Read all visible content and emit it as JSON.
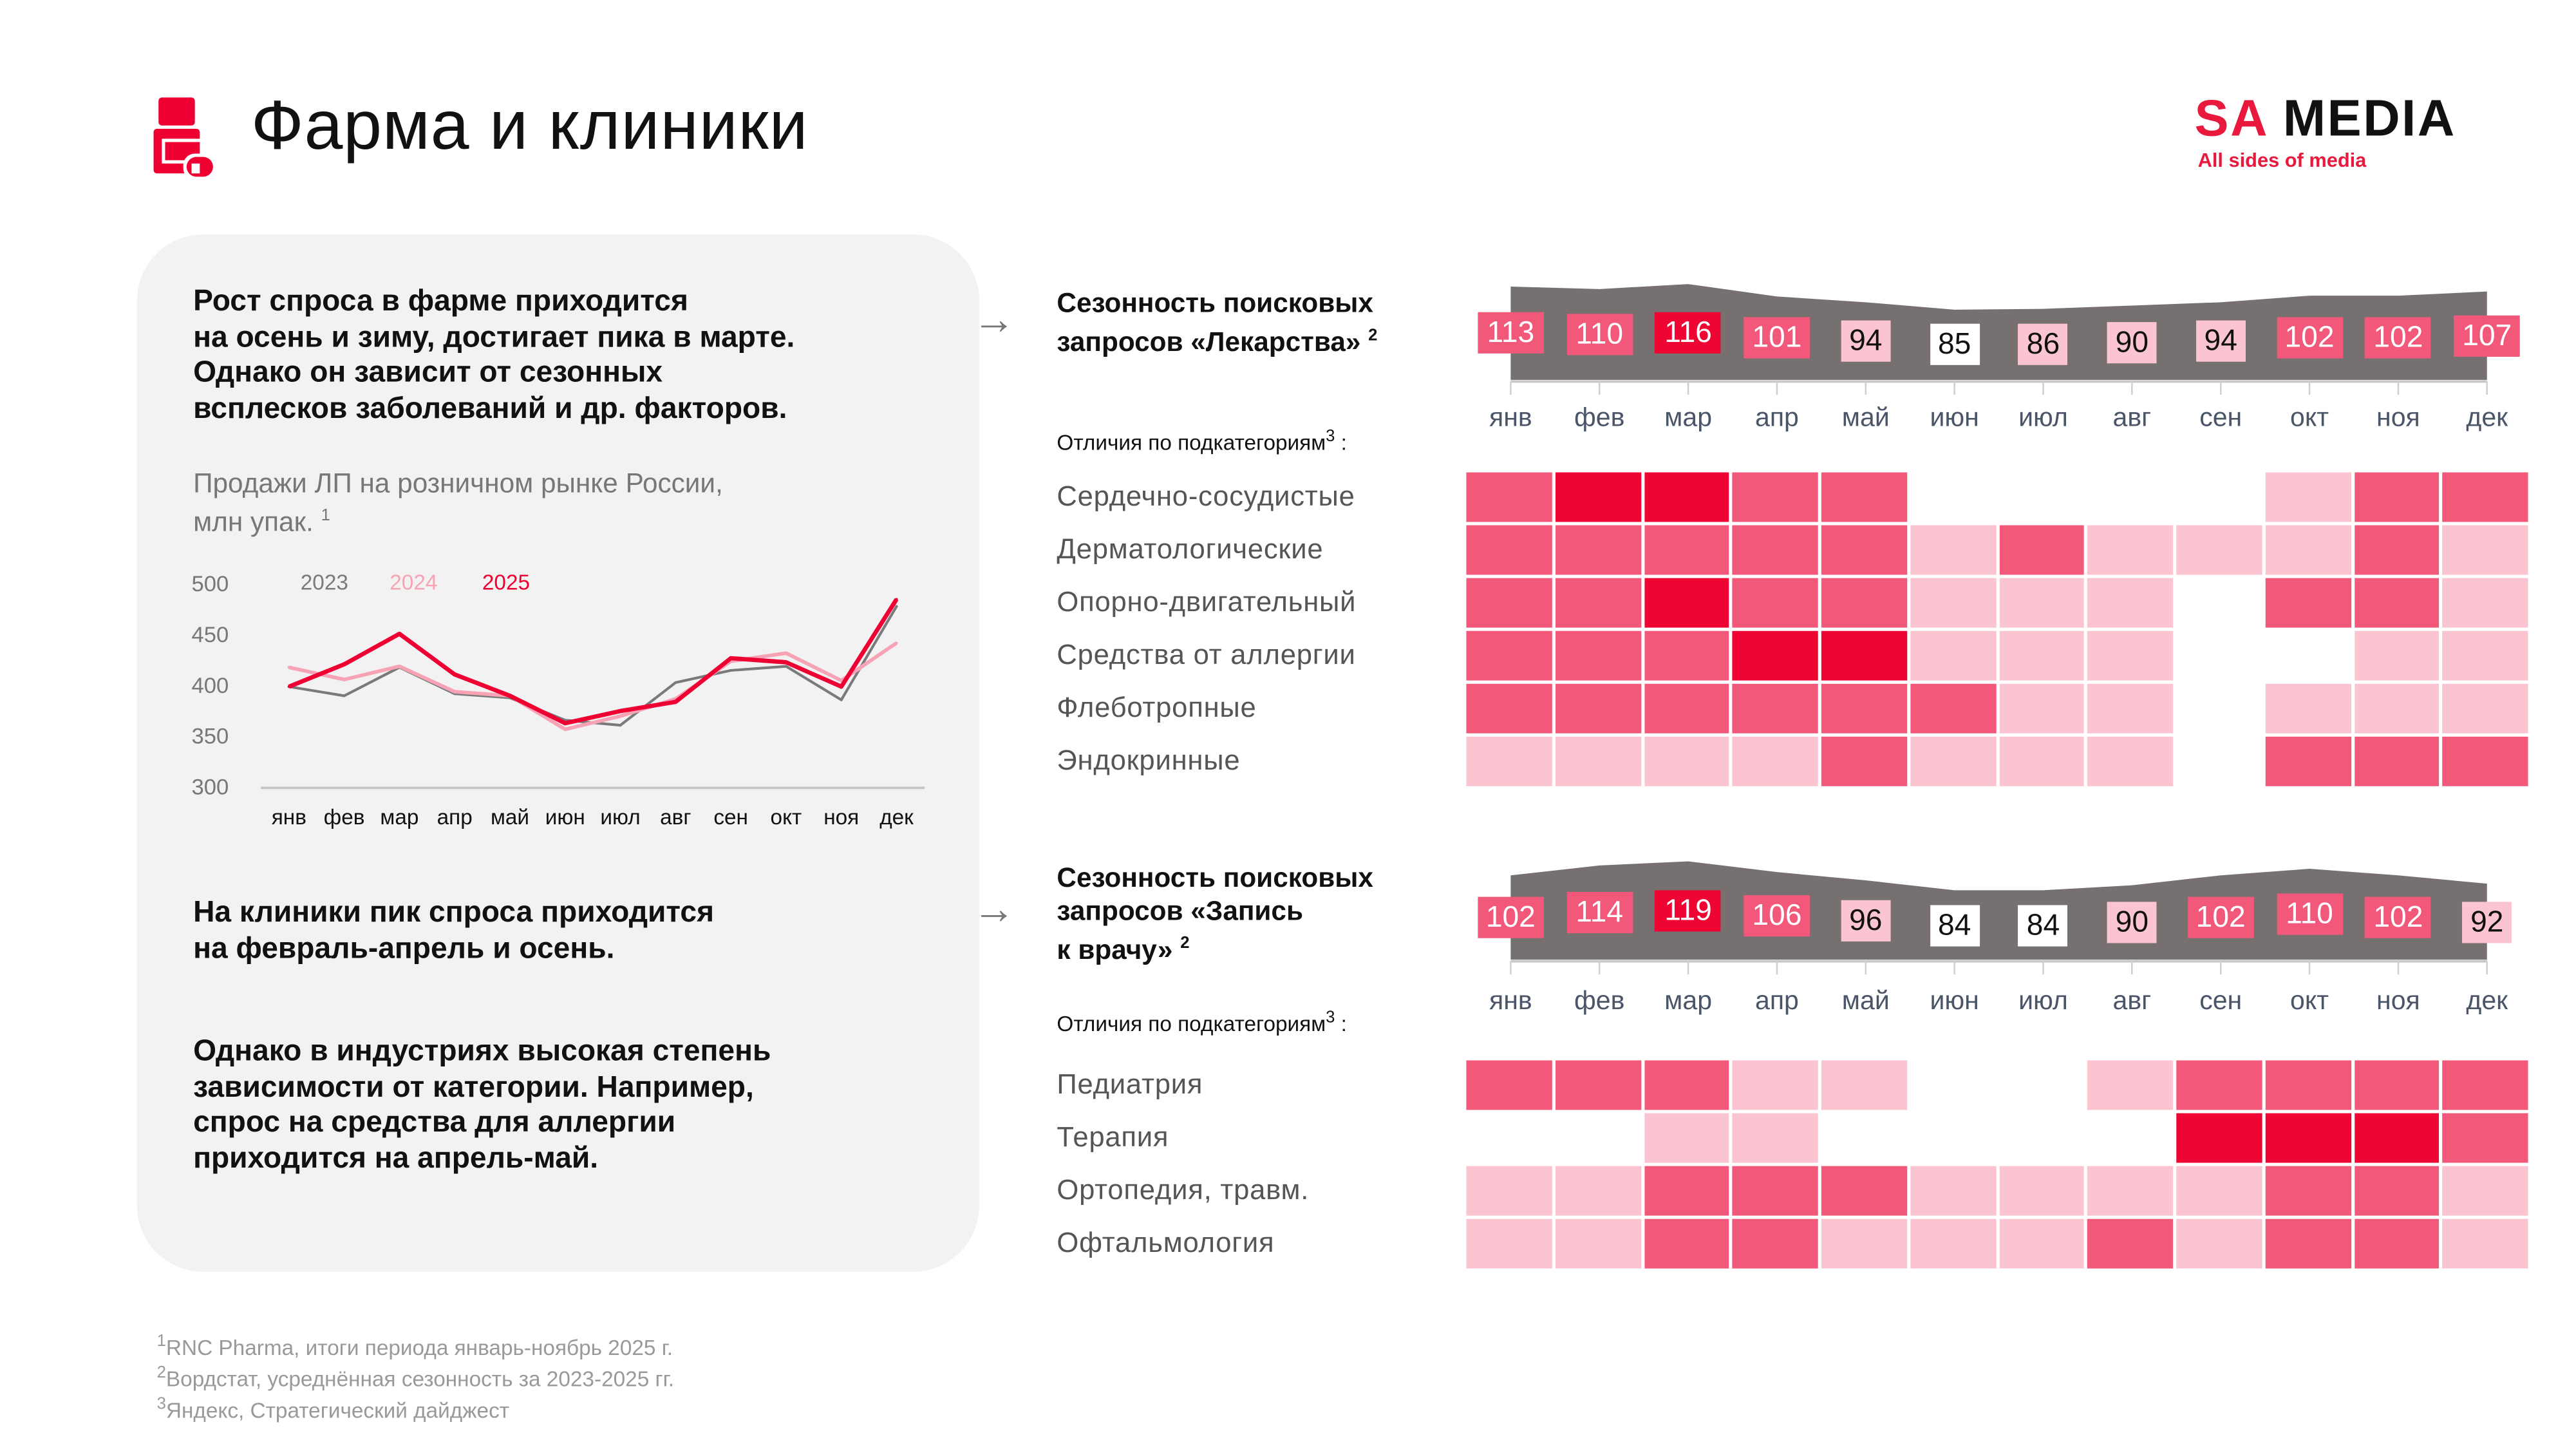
{
  "header": {
    "title": "Фарма и клиники",
    "icon": "pill-bottle-icon"
  },
  "logo": {
    "brand_sa": "SA",
    "brand_media": "MEDIA",
    "tagline": "All sides of media"
  },
  "colors": {
    "accent": "#ee0033",
    "level0": "#ffffff",
    "level1": "#fac4d1",
    "level2": "#f2587a",
    "level3": "#ee0533",
    "area": "#767170",
    "panel": "#f2f2f2"
  },
  "left_panel": {
    "paragraph1": [
      "Рост спроса в фарме приходится",
      "на осень и зиму, достигает пика в марте.",
      "Однако он зависит от сезонных",
      "всплесков заболеваний и др. факторов."
    ],
    "paragraph2": [
      "На клиники пик спроса приходится",
      "на февраль-апрель и осень."
    ],
    "paragraph3": [
      "Однако в индустриях высокая степень",
      "зависимости от категории. Например,",
      "спрос на средства для аллергии",
      "приходится на апрель-май."
    ]
  },
  "chart_data": {
    "type": "line",
    "title_lines": [
      "Продажи ЛП на розничном рынке России,",
      "млн упак."
    ],
    "title_mark": "1",
    "categories": [
      "янв",
      "фев",
      "мар",
      "апр",
      "май",
      "июн",
      "июл",
      "авг",
      "сен",
      "окт",
      "ноя",
      "дек"
    ],
    "ylim": [
      300,
      500
    ],
    "yticks": [
      "500",
      "450",
      "400",
      "350",
      "300"
    ],
    "legend_placement": "top-left",
    "grid": false,
    "series": [
      {
        "name": "2023",
        "color": "#7a7a7a",
        "values": [
          398,
          389,
          417,
          391,
          387,
          365,
          360,
          402,
          414,
          418,
          385,
          477
        ]
      },
      {
        "name": "2024",
        "color": "#f7a3b5",
        "values": [
          417,
          405,
          418,
          393,
          389,
          356,
          369,
          386,
          423,
          431,
          404,
          441
        ]
      },
      {
        "name": "2025",
        "color": "#ee0033",
        "values": [
          398,
          420,
          450,
          410,
          389,
          362,
          374,
          383,
          426,
          422,
          398,
          484
        ]
      }
    ]
  },
  "seasonality": [
    {
      "title_lines": [
        "Сезонность поисковых",
        "запросов «Лекарства»"
      ],
      "title_mark": "2",
      "months": [
        "янв",
        "фев",
        "мар",
        "апр",
        "май",
        "июн",
        "июл",
        "авг",
        "сен",
        "окт",
        "ноя",
        "дек"
      ],
      "values": [
        113,
        110,
        116,
        101,
        94,
        85,
        86,
        90,
        94,
        102,
        102,
        107
      ],
      "sub_label": "Отличия по подкатегориям",
      "sub_mark": "3",
      "rows": [
        {
          "label": "Сердечно-сосудистые",
          "levels": [
            2,
            3,
            3,
            2,
            2,
            0,
            0,
            0,
            0,
            1,
            2,
            2
          ]
        },
        {
          "label": "Дерматологические",
          "levels": [
            2,
            2,
            2,
            2,
            2,
            1,
            2,
            1,
            1,
            1,
            2,
            1
          ]
        },
        {
          "label": "Опорно-двигательный",
          "levels": [
            2,
            2,
            3,
            2,
            2,
            1,
            1,
            1,
            0,
            2,
            2,
            1
          ]
        },
        {
          "label": "Средства от аллергии",
          "levels": [
            2,
            2,
            2,
            3,
            3,
            1,
            1,
            1,
            0,
            0,
            1,
            1
          ]
        },
        {
          "label": "Флеботропные",
          "levels": [
            2,
            2,
            2,
            2,
            2,
            2,
            1,
            1,
            0,
            1,
            1,
            1
          ]
        },
        {
          "label": "Эндокринные",
          "levels": [
            1,
            1,
            1,
            1,
            2,
            1,
            1,
            1,
            0,
            2,
            2,
            2
          ]
        }
      ]
    },
    {
      "title_lines": [
        "Сезонность поисковых",
        "запросов «Запись",
        "к врачу»"
      ],
      "title_mark": "2",
      "months": [
        "янв",
        "фев",
        "мар",
        "апр",
        "май",
        "июн",
        "июл",
        "авг",
        "сен",
        "окт",
        "ноя",
        "дек"
      ],
      "values": [
        102,
        114,
        119,
        106,
        96,
        84,
        84,
        90,
        102,
        110,
        102,
        92
      ],
      "sub_label": "Отличия по подкатегориям",
      "sub_mark": "3",
      "rows": [
        {
          "label": "Педиатрия",
          "levels": [
            2,
            2,
            2,
            1,
            1,
            0,
            0,
            1,
            2,
            2,
            2,
            2
          ]
        },
        {
          "label": "Терапия",
          "levels": [
            0,
            0,
            1,
            1,
            0,
            0,
            0,
            0,
            3,
            3,
            3,
            2
          ]
        },
        {
          "label": "Ортопедия, травм.",
          "levels": [
            1,
            1,
            2,
            2,
            2,
            1,
            1,
            1,
            1,
            2,
            2,
            1
          ]
        },
        {
          "label": "Офтальмология",
          "levels": [
            1,
            1,
            2,
            2,
            1,
            1,
            1,
            2,
            1,
            2,
            2,
            1
          ]
        }
      ]
    }
  ],
  "footnotes": [
    {
      "mark": "1",
      "text": "RNC Pharma, итоги периода январь-ноябрь 2025 г."
    },
    {
      "mark": "2",
      "text": "Вордстат, усреднённая сезонность за 2023-2025 гг."
    },
    {
      "mark": "3",
      "text": "Яндекс, Стратегический дайджест"
    }
  ]
}
